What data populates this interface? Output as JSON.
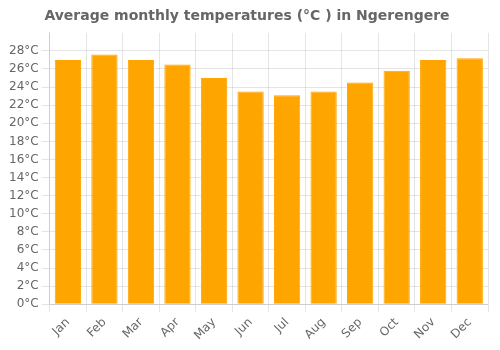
{
  "chart_data": {
    "type": "bar",
    "title": "Average monthly temperatures (°C ) in Ngerengere",
    "categories": [
      "Jan",
      "Feb",
      "Mar",
      "Apr",
      "May",
      "Jun",
      "Jul",
      "Aug",
      "Sep",
      "Oct",
      "Nov",
      "Dec"
    ],
    "values": [
      27.0,
      27.6,
      27.0,
      26.5,
      25.0,
      23.5,
      23.1,
      23.5,
      24.5,
      25.8,
      27.0,
      27.2
    ],
    "color": "#FFA500",
    "ylim": [
      0,
      30
    ],
    "yticks": [
      {
        "value": 0,
        "label": "0°C"
      },
      {
        "value": 2,
        "label": "2°C"
      },
      {
        "value": 4,
        "label": "4°C"
      },
      {
        "value": 6,
        "label": "6°C"
      },
      {
        "value": 8,
        "label": "8°C"
      },
      {
        "value": 10,
        "label": "10°C"
      },
      {
        "value": 12,
        "label": "12°C"
      },
      {
        "value": 14,
        "label": "14°C"
      },
      {
        "value": 16,
        "label": "16°C"
      },
      {
        "value": 18,
        "label": "18°C"
      },
      {
        "value": 20,
        "label": "20°C"
      },
      {
        "value": 22,
        "label": "22°C"
      },
      {
        "value": 24,
        "label": "24°C"
      },
      {
        "value": 26,
        "label": "26°C"
      },
      {
        "value": 28,
        "label": "28°C"
      }
    ],
    "grid": true
  }
}
